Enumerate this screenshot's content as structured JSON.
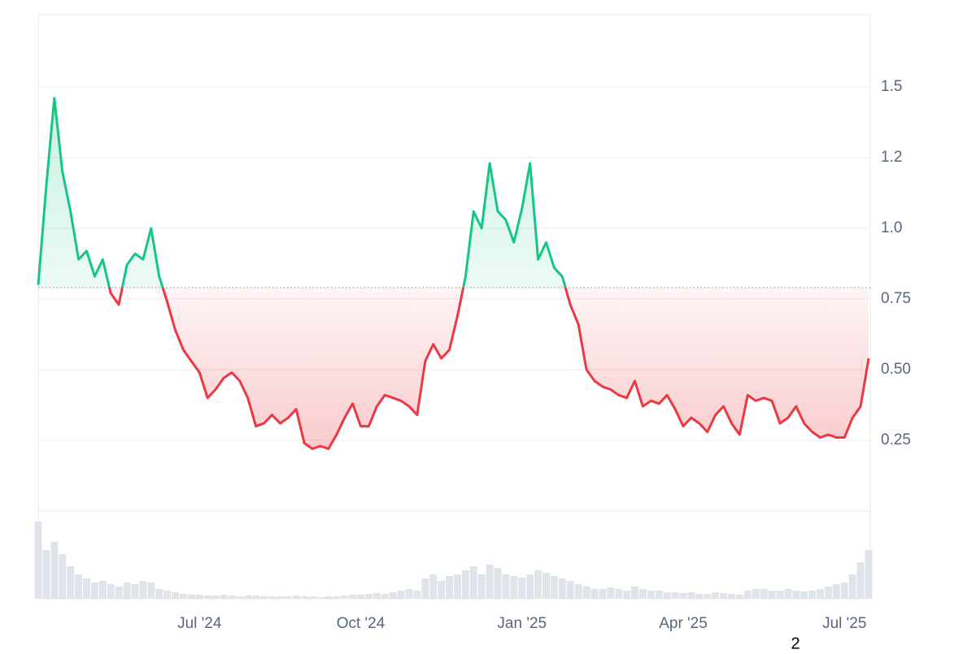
{
  "chart_data": {
    "type": "baseline-area",
    "categories": [
      null,
      null,
      null,
      null,
      null,
      null,
      null,
      null,
      null,
      null,
      null,
      null,
      null,
      null,
      null,
      null,
      null,
      null,
      null,
      null,
      "Jul '24",
      null,
      null,
      null,
      null,
      null,
      null,
      null,
      null,
      null,
      null,
      null,
      null,
      null,
      null,
      null,
      null,
      null,
      null,
      null,
      "Oct '24",
      null,
      null,
      null,
      null,
      null,
      null,
      null,
      null,
      null,
      null,
      null,
      null,
      null,
      null,
      null,
      null,
      null,
      null,
      null,
      "Jan '25",
      null,
      null,
      null,
      null,
      null,
      null,
      null,
      null,
      null,
      null,
      null,
      null,
      null,
      null,
      null,
      null,
      null,
      null,
      null,
      "Apr '25",
      null,
      null,
      null,
      null,
      null,
      null,
      null,
      null,
      null,
      null,
      null,
      null,
      null,
      null,
      null,
      null,
      null,
      null,
      null,
      "Jul '25",
      null,
      null,
      null
    ],
    "values": [
      0.8,
      1.15,
      1.46,
      1.2,
      1.06,
      0.89,
      0.92,
      0.83,
      0.89,
      0.77,
      0.73,
      0.87,
      0.91,
      0.89,
      1.0,
      0.83,
      0.74,
      0.64,
      0.57,
      0.53,
      0.49,
      0.4,
      0.43,
      0.47,
      0.49,
      0.46,
      0.4,
      0.3,
      0.31,
      0.34,
      0.31,
      0.33,
      0.36,
      0.24,
      0.22,
      0.23,
      0.22,
      0.27,
      0.33,
      0.38,
      0.3,
      0.3,
      0.37,
      0.41,
      0.4,
      0.39,
      0.37,
      0.34,
      0.53,
      0.59,
      0.54,
      0.57,
      0.69,
      0.83,
      1.06,
      1.0,
      1.23,
      1.06,
      1.03,
      0.95,
      1.07,
      1.23,
      0.89,
      0.95,
      0.86,
      0.83,
      0.73,
      0.66,
      0.5,
      0.46,
      0.44,
      0.43,
      0.41,
      0.4,
      0.46,
      0.37,
      0.39,
      0.38,
      0.41,
      0.36,
      0.3,
      0.33,
      0.31,
      0.28,
      0.34,
      0.37,
      0.31,
      0.27,
      0.41,
      0.39,
      0.4,
      0.39,
      0.31,
      0.33,
      0.37,
      0.31,
      0.28,
      0.26,
      0.27,
      0.26,
      0.26,
      0.33,
      0.37,
      0.54
    ],
    "volume": [
      95,
      60,
      70,
      55,
      40,
      30,
      25,
      20,
      22,
      18,
      15,
      20,
      18,
      22,
      20,
      12,
      10,
      8,
      6,
      5,
      5,
      4,
      4,
      5,
      4,
      3,
      4,
      4,
      3,
      3,
      3,
      3,
      4,
      3,
      3,
      2,
      3,
      3,
      4,
      5,
      5,
      6,
      7,
      6,
      8,
      10,
      12,
      10,
      25,
      30,
      22,
      28,
      30,
      35,
      40,
      30,
      42,
      38,
      30,
      28,
      26,
      30,
      35,
      32,
      28,
      25,
      22,
      18,
      15,
      12,
      12,
      14,
      12,
      10,
      15,
      12,
      10,
      10,
      8,
      8,
      7,
      8,
      6,
      6,
      8,
      7,
      6,
      5,
      10,
      12,
      12,
      10,
      10,
      12,
      10,
      9,
      10,
      12,
      15,
      18,
      20,
      30,
      45,
      60
    ],
    "baseline": 0.79,
    "color_above": "#16c784",
    "color_below": "#ea3943",
    "volume_color": "#dfe4ea",
    "ylim": [
      0,
      1.75
    ],
    "yticks": [
      1.5,
      {
        "value": 1.25,
        "label": "1.2"
      },
      {
        "value": 1,
        "label": "1.0"
      },
      0.75,
      {
        "value": 0.5,
        "label": "0.50"
      },
      0.25
    ],
    "grid": true,
    "footnote": "2"
  }
}
